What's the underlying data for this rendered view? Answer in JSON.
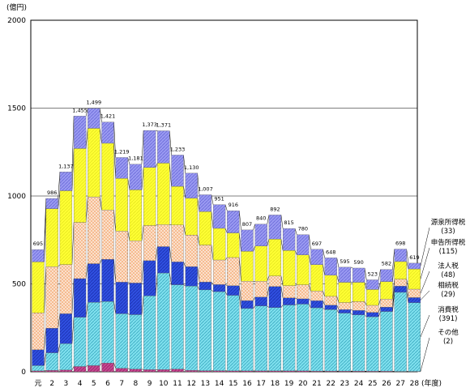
{
  "chart_data": {
    "type": "bar",
    "stacked": true,
    "y_unit": "(億円)",
    "x_unit": "(年度)",
    "ylim": [
      0,
      2000
    ],
    "yticks": [
      0,
      500,
      1000,
      1500,
      2000
    ],
    "grid": true,
    "legend": "right",
    "categories": [
      "元",
      "2",
      "3",
      "4",
      "5",
      "6",
      "7",
      "8",
      "9",
      "10",
      "11",
      "12",
      "13",
      "14",
      "15",
      "16",
      "17",
      "18",
      "19",
      "20",
      "21",
      "22",
      "23",
      "24",
      "25",
      "26",
      "27",
      "28"
    ],
    "totals": [
      695,
      986,
      1137,
      1455,
      1499,
      1421,
      1219,
      1181,
      1373,
      1371,
      1233,
      1130,
      1007,
      951,
      916,
      807,
      840,
      892,
      815,
      780,
      697,
      648,
      595,
      590,
      523,
      582,
      698,
      619
    ],
    "series": [
      {
        "name": "その他",
        "value_note": "(2)",
        "color": "#b0307a",
        "values": [
          5,
          8,
          10,
          30,
          35,
          50,
          20,
          15,
          12,
          12,
          15,
          8,
          6,
          6,
          5,
          5,
          5,
          5,
          5,
          5,
          4,
          4,
          4,
          4,
          3,
          3,
          2,
          2
        ]
      },
      {
        "name": "消費税",
        "value_note": "(391)",
        "color": "#7fe0ee",
        "values": [
          30,
          100,
          150,
          280,
          360,
          350,
          310,
          310,
          420,
          550,
          480,
          480,
          460,
          450,
          430,
          355,
          370,
          360,
          375,
          380,
          360,
          350,
          330,
          320,
          310,
          340,
          450,
          391
        ]
      },
      {
        "name": "相続税",
        "value_note": "(29)",
        "color": "#3050e0",
        "values": [
          90,
          140,
          170,
          220,
          220,
          240,
          180,
          180,
          200,
          150,
          130,
          110,
          45,
          40,
          55,
          45,
          50,
          120,
          40,
          30,
          40,
          25,
          20,
          25,
          25,
          25,
          35,
          29
        ]
      },
      {
        "name": "法人税",
        "value_note": "(48)",
        "color": "#f4b088",
        "values": [
          210,
          350,
          280,
          320,
          380,
          280,
          290,
          240,
          200,
          125,
          210,
          180,
          210,
          140,
          160,
          110,
          90,
          60,
          70,
          80,
          55,
          50,
          40,
          50,
          40,
          45,
          40,
          48
        ]
      },
      {
        "name": "申告所得税",
        "value_note": "(115)",
        "color": "#ffff33",
        "values": [
          290,
          330,
          420,
          420,
          390,
          380,
          300,
          290,
          330,
          350,
          220,
          210,
          190,
          180,
          140,
          170,
          200,
          210,
          200,
          170,
          150,
          120,
          115,
          110,
          90,
          100,
          100,
          115
        ]
      },
      {
        "name": "源泉所得税",
        "value_note": "(33)",
        "color": "#8c8cee",
        "values": [
          70,
          58,
          107,
          185,
          114,
          121,
          119,
          146,
          211,
          184,
          178,
          142,
          96,
          135,
          126,
          122,
          125,
          137,
          125,
          115,
          88,
          99,
          86,
          81,
          55,
          69,
          71,
          33
        ]
      }
    ]
  }
}
